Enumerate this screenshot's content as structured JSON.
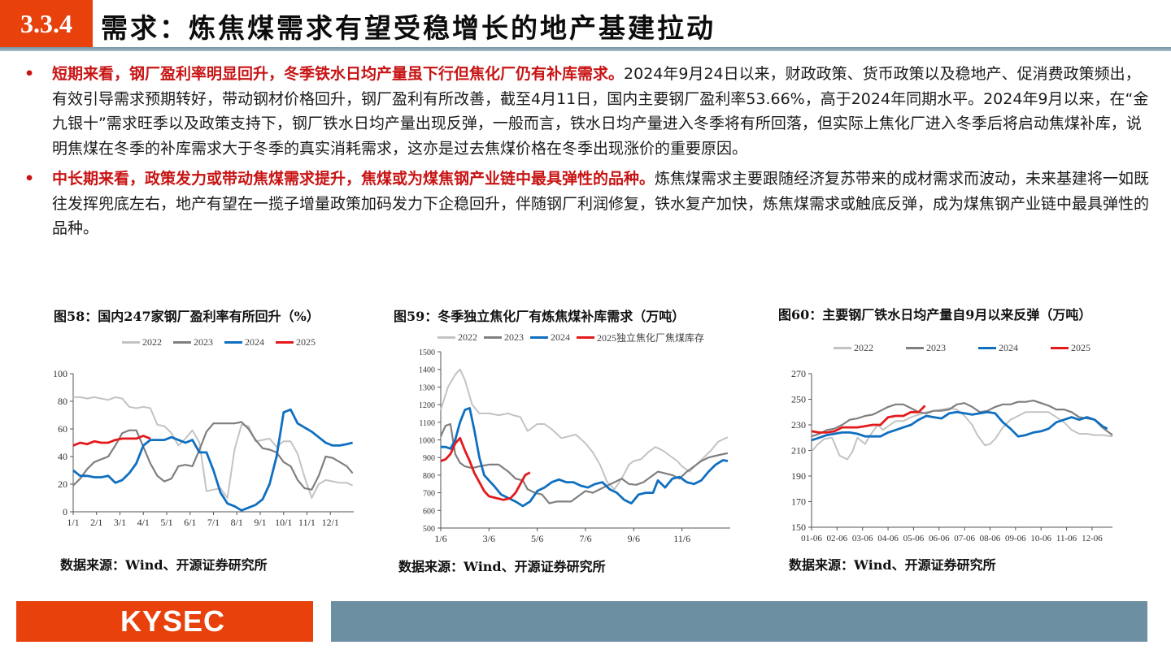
{
  "header": {
    "section_number": "3.3.4",
    "title": "需求：炼焦煤需求有望受稳增长的地产基建拉动"
  },
  "bullets": [
    {
      "highlight": "短期来看，钢厂盈利率明显回升，冬季铁水日均产量虽下行但焦化厂仍有补库需求。",
      "body": "2024年9月24日以来，财政政策、货币政策以及稳地产、促消费政策频出，有效引导需求预期转好，带动钢材价格回升，钢厂盈利有所改善，截至4月11日，国内主要钢厂盈利率53.66%，高于2024年同期水平。2024年9月以来，在“金九银十”需求旺季以及政策支持下，钢厂铁水日均产量出现反弹，一般而言，铁水日均产量进入冬季将有所回落，但实际上焦化厂进入冬季后将启动焦煤补库，说明焦煤在冬季的补库需求大于冬季的真实消耗需求，这亦是过去焦煤价格在冬季出现涨价的重要原因。"
    },
    {
      "highlight": "中长期来看，政策发力或带动焦煤需求提升，焦煤或为煤焦钢产业链中最具弹性的品种。",
      "body": "炼焦煤需求主要跟随经济复苏带来的成材需求而波动，未来基建将一如既往发挥兜底左右，地产有望在一揽子增量政策加码发力下企稳回升，伴随钢厂利润修复，铁水复产加快，炼焦煤需求或触底反弹，成为煤焦钢产业链中最具弹性的品种。"
    }
  ],
  "colors": {
    "accent": "#e8410c",
    "highlight_text": "#c81414",
    "rule": "#7493a4",
    "footer_bar": "#6d8fa2",
    "s2022": "#c3c3c3",
    "s2023": "#7f7f7f",
    "s2024": "#0f6fc0",
    "s2025": "#e3191c"
  },
  "figures": [
    {
      "title": "图58：国内247家钢厂盈利率有所回升（%）",
      "source": "数据来源：Wind、开源证券研究所",
      "legend": [
        "2022",
        "2023",
        "2024",
        "2025"
      ]
    },
    {
      "title": "图59：冬季独立焦化厂有炼焦煤补库需求（万吨）",
      "source": "数据来源：Wind、开源证券研究所",
      "legend": [
        "2022",
        "2023",
        "2024",
        "2025独立焦化厂焦煤库存"
      ]
    },
    {
      "title": "图60：主要钢厂铁水日均产量自9月以来反弹（万吨）",
      "source": "数据来源：Wind、开源证券研究所",
      "legend": [
        "2022",
        "2023",
        "2024",
        "2025"
      ]
    }
  ],
  "footer": {
    "logo": "KYSEC"
  },
  "chart_data": [
    {
      "type": "line",
      "title": "图58：国内247家钢厂盈利率有所回升（%）",
      "xlabel": "",
      "ylabel": "%",
      "ylim": [
        0,
        100
      ],
      "yticks": [
        0,
        20,
        40,
        60,
        80,
        100
      ],
      "categories": [
        "1/1",
        "2/1",
        "3/1",
        "4/1",
        "5/1",
        "6/1",
        "7/1",
        "8/1",
        "9/1",
        "10/1",
        "11/1",
        "12/1"
      ],
      "x_ticks_pos": [
        0,
        1,
        2,
        3,
        4,
        5,
        6,
        7,
        8,
        9,
        10,
        11
      ],
      "x_max": 12,
      "grid": false,
      "legend_position": "top",
      "series": [
        {
          "name": "2022",
          "x": [
            0,
            0.3,
            0.6,
            0.9,
            1.2,
            1.5,
            1.8,
            2.1,
            2.4,
            2.7,
            3.0,
            3.3,
            3.6,
            3.9,
            4.2,
            4.5,
            4.8,
            5.1,
            5.4,
            5.7,
            6.0,
            6.3,
            6.6,
            6.9,
            7.2,
            7.5,
            7.8,
            8.1,
            8.4,
            8.7,
            9.0,
            9.3,
            9.6,
            9.9,
            10.2,
            10.5,
            10.8,
            11.1,
            11.4,
            11.7,
            11.95
          ],
          "values": [
            83,
            83,
            82,
            83,
            82,
            81,
            83,
            82,
            76,
            75,
            76,
            75,
            63,
            62,
            57,
            48,
            53,
            59,
            50,
            15,
            16,
            17,
            10,
            45,
            63,
            62,
            51,
            52,
            53,
            47,
            51,
            51,
            42,
            25,
            10,
            20,
            23,
            22,
            21,
            21,
            19
          ]
        },
        {
          "name": "2023",
          "x": [
            0,
            0.3,
            0.6,
            0.9,
            1.2,
            1.5,
            1.8,
            2.1,
            2.4,
            2.7,
            3.0,
            3.3,
            3.6,
            3.9,
            4.2,
            4.5,
            4.8,
            5.1,
            5.4,
            5.7,
            6.0,
            6.3,
            6.6,
            6.9,
            7.2,
            7.5,
            7.8,
            8.1,
            8.4,
            8.7,
            9.0,
            9.3,
            9.6,
            9.9,
            10.2,
            10.5,
            10.8,
            11.1,
            11.4,
            11.7,
            11.95
          ],
          "values": [
            19,
            24,
            31,
            36,
            38,
            40,
            48,
            57,
            59,
            59,
            47,
            35,
            26,
            22,
            24,
            33,
            34,
            33,
            45,
            58,
            64,
            64,
            64,
            64,
            65,
            60,
            52,
            46,
            45,
            43,
            36,
            33,
            23,
            17,
            16,
            26,
            40,
            39,
            36,
            33,
            28
          ]
        },
        {
          "name": "2024",
          "x": [
            0,
            0.3,
            0.6,
            0.9,
            1.2,
            1.5,
            1.8,
            2.1,
            2.4,
            2.7,
            3.0,
            3.3,
            3.6,
            3.9,
            4.2,
            4.5,
            4.8,
            5.1,
            5.4,
            5.7,
            6.0,
            6.3,
            6.6,
            6.9,
            7.2,
            7.5,
            7.8,
            8.1,
            8.4,
            8.7,
            9.0,
            9.3,
            9.6,
            9.9,
            10.2,
            10.5,
            10.8,
            11.1,
            11.4,
            11.7,
            11.95
          ],
          "values": [
            30,
            26,
            26,
            25,
            25,
            26,
            21,
            23,
            28,
            35,
            48,
            52,
            52,
            52,
            54,
            52,
            50,
            52,
            43,
            43,
            30,
            14,
            6,
            4,
            1,
            3,
            5,
            9,
            20,
            40,
            72,
            74,
            64,
            61,
            58,
            54,
            50,
            48,
            48,
            49,
            50
          ]
        },
        {
          "name": "2025",
          "x": [
            0,
            0.3,
            0.6,
            0.9,
            1.2,
            1.5,
            1.8,
            2.1,
            2.4,
            2.7,
            3.0,
            3.3
          ],
          "values": [
            48,
            50,
            49,
            51,
            50,
            50,
            52,
            53,
            53,
            53,
            55,
            53
          ]
        }
      ]
    },
    {
      "type": "line",
      "title": "图59：冬季独立焦化厂有炼焦煤补库需求（万吨）",
      "xlabel": "",
      "ylabel": "万吨",
      "ylim": [
        500,
        1500
      ],
      "yticks": [
        500,
        600,
        700,
        800,
        900,
        1000,
        1100,
        1200,
        1300,
        1400,
        1500
      ],
      "categories": [
        "1/6",
        "3/6",
        "5/6",
        "7/6",
        "9/6",
        "11/6"
      ],
      "x_ticks_pos": [
        0,
        2,
        4,
        6,
        8,
        10
      ],
      "x_max": 12,
      "grid": false,
      "legend_position": "top",
      "series": [
        {
          "name": "2022",
          "x": [
            0,
            0.3,
            0.6,
            0.8,
            1.0,
            1.3,
            1.6,
            2.0,
            2.4,
            2.8,
            3.0,
            3.3,
            3.6,
            4.0,
            4.3,
            4.6,
            5.0,
            5.3,
            5.6,
            6.0,
            6.3,
            6.6,
            6.9,
            7.2,
            7.5,
            7.8,
            8.0,
            8.3,
            8.6,
            8.9,
            9.2,
            9.5,
            9.8,
            10.0,
            10.3,
            10.6,
            10.9,
            11.2,
            11.5,
            11.9
          ],
          "values": [
            1170,
            1300,
            1370,
            1400,
            1340,
            1200,
            1150,
            1150,
            1140,
            1150,
            1140,
            1130,
            1050,
            1090,
            1090,
            1060,
            1010,
            1020,
            1030,
            980,
            930,
            860,
            760,
            720,
            780,
            860,
            880,
            890,
            930,
            960,
            940,
            910,
            880,
            850,
            820,
            860,
            900,
            940,
            990,
            1015
          ]
        },
        {
          "name": "2023",
          "x": [
            0,
            0.2,
            0.4,
            0.6,
            0.8,
            1.0,
            1.3,
            1.6,
            2.0,
            2.4,
            2.8,
            3.1,
            3.4,
            3.6,
            3.9,
            4.2,
            4.5,
            4.8,
            5.1,
            5.4,
            5.7,
            6.0,
            6.3,
            6.6,
            6.9,
            7.2,
            7.5,
            7.8,
            8.1,
            8.4,
            8.7,
            9.0,
            9.3,
            9.6,
            9.9,
            10.2,
            10.5,
            10.8,
            11.1,
            11.4,
            11.9
          ],
          "values": [
            1020,
            1080,
            1090,
            920,
            870,
            850,
            840,
            850,
            860,
            860,
            820,
            780,
            770,
            720,
            700,
            690,
            640,
            650,
            650,
            650,
            680,
            710,
            700,
            720,
            740,
            760,
            780,
            750,
            745,
            760,
            790,
            820,
            810,
            800,
            780,
            820,
            850,
            880,
            900,
            910,
            925
          ]
        },
        {
          "name": "2024",
          "x": [
            0,
            0.2,
            0.4,
            0.6,
            0.8,
            1.0,
            1.2,
            1.4,
            1.6,
            1.8,
            2.0,
            2.2,
            2.5,
            2.8,
            3.1,
            3.4,
            3.7,
            4.0,
            4.3,
            4.6,
            4.9,
            5.2,
            5.5,
            5.8,
            6.1,
            6.4,
            6.7,
            7.0,
            7.3,
            7.6,
            7.9,
            8.2,
            8.5,
            8.8,
            9.0,
            9.3,
            9.6,
            9.9,
            10.2,
            10.5,
            10.8,
            11.1,
            11.4,
            11.7,
            11.9
          ],
          "values": [
            960,
            960,
            950,
            1000,
            1100,
            1170,
            1180,
            1050,
            900,
            800,
            770,
            740,
            690,
            670,
            650,
            625,
            650,
            710,
            730,
            760,
            775,
            760,
            760,
            740,
            730,
            750,
            760,
            720,
            700,
            660,
            640,
            690,
            700,
            700,
            770,
            730,
            780,
            790,
            760,
            750,
            770,
            820,
            860,
            885,
            880
          ]
        },
        {
          "name": "2025独立焦化厂焦煤库存",
          "x": [
            0,
            0.2,
            0.4,
            0.6,
            0.8,
            1.0,
            1.2,
            1.4,
            1.6,
            1.8,
            2.0,
            2.3,
            2.6,
            2.9,
            3.1,
            3.3,
            3.5,
            3.7
          ],
          "values": [
            880,
            890,
            920,
            980,
            1010,
            940,
            880,
            810,
            760,
            710,
            680,
            670,
            660,
            670,
            700,
            750,
            800,
            815
          ]
        }
      ]
    },
    {
      "type": "line",
      "title": "图60：主要钢厂铁水日均产量自9月以来反弹（万吨）",
      "xlabel": "",
      "ylabel": "万吨",
      "ylim": [
        150,
        270
      ],
      "yticks": [
        150,
        170,
        190,
        210,
        230,
        250,
        270
      ],
      "categories": [
        "01-06",
        "02-06",
        "03-06",
        "04-06",
        "05-06",
        "06-06",
        "07-06",
        "08-06",
        "09-06",
        "10-06",
        "11-06",
        "12-06"
      ],
      "x_ticks_pos": [
        0,
        1,
        2,
        3,
        4,
        5,
        6,
        7,
        8,
        9,
        10,
        11
      ],
      "x_max": 11.8,
      "grid": false,
      "legend_position": "top",
      "series": [
        {
          "name": "2022",
          "x": [
            0,
            0.2,
            0.5,
            0.8,
            1.1,
            1.4,
            1.6,
            1.8,
            2.1,
            2.3,
            2.6,
            2.8,
            3.0,
            3.3,
            3.6,
            3.9,
            4.2,
            4.5,
            4.8,
            5.1,
            5.4,
            5.7,
            6.0,
            6.3,
            6.5,
            6.8,
            7.0,
            7.2,
            7.5,
            7.8,
            8.1,
            8.4,
            8.7,
            9.0,
            9.3,
            9.6,
            9.9,
            10.2,
            10.5,
            10.8,
            11.1,
            11.4,
            11.8
          ],
          "values": [
            209,
            214,
            219,
            220,
            206,
            203,
            209,
            220,
            215,
            222,
            230,
            226,
            229,
            233,
            233,
            236,
            238,
            240,
            241,
            242,
            243,
            242,
            237,
            230,
            222,
            214,
            215,
            219,
            228,
            234,
            237,
            240,
            240,
            240,
            240,
            236,
            232,
            226,
            223,
            223,
            222,
            222,
            221
          ]
        },
        {
          "name": "2023",
          "x": [
            0,
            0.3,
            0.6,
            0.9,
            1.2,
            1.5,
            1.8,
            2.1,
            2.4,
            2.7,
            3.0,
            3.3,
            3.6,
            3.9,
            4.2,
            4.5,
            4.8,
            5.1,
            5.4,
            5.7,
            6.0,
            6.3,
            6.6,
            6.9,
            7.2,
            7.5,
            7.8,
            8.1,
            8.4,
            8.7,
            9.0,
            9.3,
            9.6,
            9.9,
            10.2,
            10.5,
            10.8,
            11.1,
            11.4,
            11.8
          ],
          "values": [
            221,
            223,
            226,
            227,
            230,
            234,
            235,
            237,
            238,
            241,
            244,
            246,
            246,
            243,
            240,
            239,
            241,
            241,
            242,
            246,
            247,
            244,
            240,
            241,
            244,
            246,
            246,
            248,
            248,
            249,
            247,
            245,
            242,
            242,
            240,
            236,
            235,
            234,
            228,
            222
          ]
        },
        {
          "name": "2024",
          "x": [
            0,
            0.3,
            0.6,
            0.9,
            1.2,
            1.5,
            1.8,
            2.1,
            2.4,
            2.7,
            3.0,
            3.3,
            3.6,
            3.9,
            4.2,
            4.5,
            4.8,
            5.1,
            5.4,
            5.7,
            6.0,
            6.3,
            6.6,
            6.9,
            7.2,
            7.5,
            7.8,
            8.1,
            8.4,
            8.7,
            9.0,
            9.3,
            9.6,
            9.9,
            10.2,
            10.5,
            10.8,
            11.1,
            11.4,
            11.6
          ],
          "values": [
            218,
            220,
            222,
            223,
            224,
            224,
            223,
            221,
            221,
            221,
            224,
            226,
            228,
            230,
            234,
            237,
            236,
            235,
            239,
            240,
            239,
            238,
            239,
            240,
            239,
            232,
            227,
            221,
            222,
            224,
            225,
            227,
            232,
            234,
            236,
            234,
            236,
            234,
            229,
            227
          ]
        },
        {
          "name": "2025",
          "x": [
            0,
            0.3,
            0.6,
            0.9,
            1.2,
            1.5,
            1.8,
            2.1,
            2.4,
            2.7,
            3.0,
            3.3,
            3.6,
            3.9,
            4.2,
            4.45
          ],
          "values": [
            225,
            224,
            224,
            225,
            228,
            228,
            228,
            229,
            230,
            230,
            236,
            237,
            237,
            240,
            240,
            245
          ]
        }
      ]
    }
  ]
}
